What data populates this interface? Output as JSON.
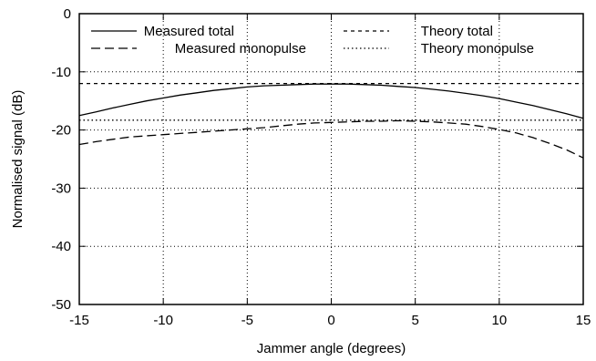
{
  "chart_data": {
    "type": "line",
    "xlabel": "Jammer angle (degrees)",
    "ylabel": "Normalised signal (dB)",
    "xlim": [
      -15,
      15
    ],
    "ylim": [
      -50,
      0
    ],
    "xticks": [
      -15,
      -10,
      -5,
      0,
      5,
      10,
      15
    ],
    "yticks": [
      0,
      -10,
      -20,
      -30,
      -40,
      -50
    ],
    "grid": true,
    "legend_position": "top",
    "series": [
      {
        "name": "Measured total",
        "style": "solid",
        "x": [
          -15,
          -14,
          -13,
          -12,
          -11,
          -10,
          -9,
          -8,
          -7,
          -6,
          -5,
          -4,
          -3,
          -2,
          -1,
          0,
          1,
          2,
          3,
          4,
          5,
          6,
          7,
          8,
          9,
          10,
          11,
          12,
          13,
          14,
          15
        ],
        "y": [
          -17.5,
          -16.9,
          -16.2,
          -15.6,
          -15.0,
          -14.5,
          -14.0,
          -13.6,
          -13.2,
          -12.9,
          -12.6,
          -12.4,
          -12.3,
          -12.2,
          -12.1,
          -12.1,
          -12.1,
          -12.2,
          -12.3,
          -12.5,
          -12.7,
          -13.0,
          -13.3,
          -13.7,
          -14.1,
          -14.6,
          -15.2,
          -15.8,
          -16.5,
          -17.2,
          -18.0
        ]
      },
      {
        "name": "Measured monopulse",
        "style": "longdash",
        "x": [
          -15,
          -14,
          -13,
          -12,
          -11,
          -10,
          -9,
          -8,
          -7,
          -6,
          -5,
          -4,
          -3,
          -2,
          -1,
          0,
          1,
          2,
          3,
          4,
          5,
          6,
          7,
          8,
          9,
          10,
          11,
          12,
          13,
          14,
          15
        ],
        "y": [
          -22.5,
          -22.0,
          -21.6,
          -21.2,
          -21.0,
          -20.8,
          -20.6,
          -20.4,
          -20.2,
          -20.0,
          -19.8,
          -19.6,
          -19.3,
          -19.0,
          -18.8,
          -18.7,
          -18.6,
          -18.5,
          -18.5,
          -18.4,
          -18.5,
          -18.6,
          -18.8,
          -19.0,
          -19.4,
          -19.9,
          -20.5,
          -21.3,
          -22.3,
          -23.4,
          -24.8
        ]
      },
      {
        "name": "Theory total",
        "style": "shortdash",
        "x": [
          -15,
          15
        ],
        "y": [
          -12,
          -12
        ]
      },
      {
        "name": "Theory monopulse",
        "style": "dotted",
        "x": [
          -15,
          15
        ],
        "y": [
          -18.3,
          -18.3
        ]
      }
    ]
  }
}
